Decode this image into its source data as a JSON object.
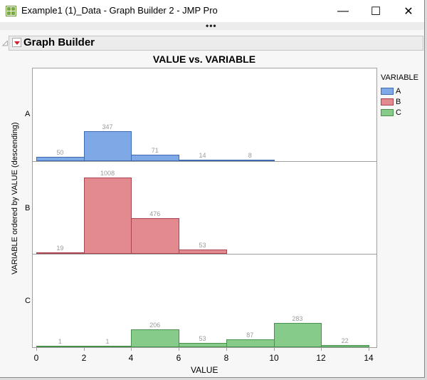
{
  "window": {
    "title": "Example1 (1)_Data - Graph Builder 2 - JMP Pro",
    "minimize_icon": "minimize-icon",
    "maximize_icon": "maximize-icon",
    "close_icon": "close-icon",
    "minimize_glyph": "—",
    "maximize_glyph": "☐",
    "close_glyph": "✕"
  },
  "toolbar": {
    "more_glyph": "•••"
  },
  "outline": {
    "disclosure_glyph": "◿",
    "title": "Graph Builder"
  },
  "colors": {
    "A": {
      "fill": "#7fa8e6",
      "stroke": "#3e6bb0"
    },
    "B": {
      "fill": "#e38990",
      "stroke": "#a94350"
    },
    "C": {
      "fill": "#86cb8a",
      "stroke": "#47914b"
    }
  },
  "chart_data": {
    "type": "bar",
    "subtype": "histogram-faceted",
    "title": "VALUE vs. VARIABLE",
    "xlabel": "VALUE",
    "ylabel": "VARIABLE ordered by VALUE (descending)",
    "xlim": [
      0,
      14
    ],
    "x_ticks": [
      0,
      2,
      4,
      6,
      8,
      10,
      12,
      14
    ],
    "bin_width": 2,
    "legend": {
      "title": "VARIABLE",
      "position": "right",
      "entries": [
        "A",
        "B",
        "C"
      ]
    },
    "panels": [
      "A",
      "B",
      "C"
    ],
    "series": [
      {
        "name": "A",
        "bins": [
          [
            0,
            2
          ],
          [
            2,
            4
          ],
          [
            4,
            6
          ],
          [
            6,
            8
          ],
          [
            8,
            10
          ]
        ],
        "values": [
          50,
          347,
          71,
          14,
          8
        ]
      },
      {
        "name": "B",
        "bins": [
          [
            0,
            2
          ],
          [
            2,
            4
          ],
          [
            4,
            6
          ],
          [
            6,
            8
          ]
        ],
        "values": [
          19,
          1008,
          476,
          53
        ]
      },
      {
        "name": "C",
        "bins": [
          [
            0,
            2
          ],
          [
            2,
            4
          ],
          [
            4,
            6
          ],
          [
            6,
            8
          ],
          [
            8,
            10
          ],
          [
            10,
            12
          ],
          [
            12,
            14
          ]
        ],
        "values": [
          1,
          1,
          206,
          53,
          87,
          283,
          22
        ]
      }
    ],
    "grid": false
  }
}
